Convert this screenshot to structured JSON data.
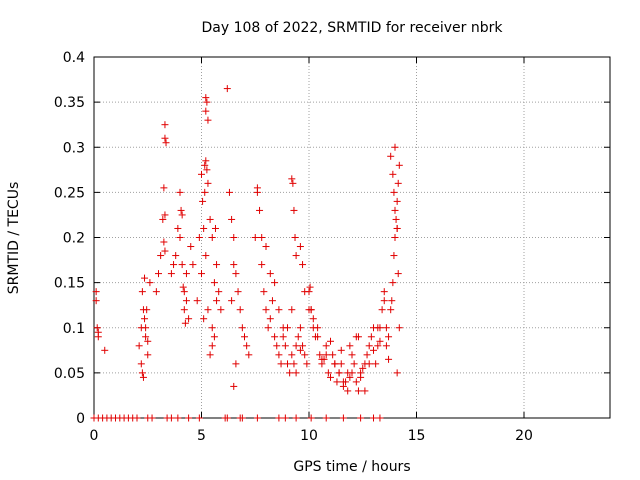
{
  "chart_data": {
    "type": "scatter",
    "title": "Day 108 of 2022, SRMTID for receiver nbrk",
    "xlabel": "GPS time / hours",
    "ylabel": "SRMTID / TECUs",
    "xlim": [
      0,
      24
    ],
    "ylim": [
      0,
      0.4
    ],
    "x_ticks": [
      0,
      5,
      10,
      15,
      20
    ],
    "x_tick_labels": [
      "0",
      "5",
      "10",
      "15",
      "20"
    ],
    "y_ticks": [
      0,
      0.05,
      0.1,
      0.15,
      0.2,
      0.25,
      0.3,
      0.35,
      0.4
    ],
    "y_tick_labels": [
      "0",
      "0.05",
      "0.1",
      "0.15",
      "0.2",
      "0.25",
      "0.3",
      "0.35",
      "0.4"
    ],
    "grid": true,
    "marker": "plus",
    "color": "#e00000",
    "series": [
      {
        "name": "SRMTID",
        "x": [
          0.1,
          0.15,
          0.2,
          0.1,
          0.2,
          0.5,
          2.1,
          2.2,
          2.25,
          2.3,
          2.35,
          2.4,
          2.45,
          2.5,
          2.2,
          2.3,
          2.6,
          2.4,
          2.35,
          2.25,
          2.5,
          2.9,
          3.0,
          3.1,
          3.2,
          3.25,
          3.3,
          3.3,
          3.35,
          3.3,
          3.3,
          3.25,
          3.6,
          3.7,
          3.8,
          3.9,
          4.0,
          4.0,
          4.05,
          4.1,
          4.2,
          4.3,
          4.2,
          4.5,
          4.6,
          4.1,
          4.3,
          4.4,
          4.25,
          4.15,
          4.8,
          4.9,
          5.0,
          5.0,
          5.05,
          5.1,
          5.15,
          5.2,
          5.25,
          5.3,
          5.2,
          5.2,
          5.15,
          5.25,
          5.3,
          5.4,
          5.5,
          5.6,
          5.7,
          5.8,
          5.3,
          5.5,
          5.6,
          5.5,
          5.4,
          5.2,
          5.1,
          5.7,
          5.65,
          5.9,
          6.2,
          6.3,
          6.4,
          6.5,
          6.6,
          6.5,
          6.7,
          6.8,
          6.9,
          7.0,
          7.1,
          7.2,
          6.4,
          6.6,
          6.5,
          7.5,
          7.6,
          7.7,
          7.8,
          7.9,
          8.0,
          8.1,
          8.2,
          8.3,
          8.4,
          8.5,
          8.6,
          8.7,
          8.8,
          8.9,
          9.0,
          9.1,
          9.2,
          9.3,
          9.4,
          9.5,
          9.6,
          9.7,
          9.8,
          9.9,
          10.0,
          10.1,
          10.2,
          10.3,
          10.4,
          7.6,
          7.8,
          8.0,
          8.2,
          8.4,
          8.6,
          8.8,
          9.0,
          9.2,
          9.4,
          9.6,
          9.8,
          10.0,
          10.2,
          10.4,
          10.5,
          10.6,
          10.7,
          10.8,
          10.9,
          11.0,
          11.1,
          11.2,
          11.3,
          11.4,
          11.5,
          11.6,
          11.7,
          11.8,
          11.9,
          12.0,
          12.1,
          12.2,
          12.3,
          12.4,
          12.5,
          12.6,
          12.7,
          12.8,
          12.9,
          13.0,
          10.6,
          10.8,
          11.0,
          11.2,
          11.4,
          11.6,
          11.8,
          12.0,
          12.2,
          12.4,
          12.6,
          12.8,
          13.0,
          13.1,
          13.2,
          13.3,
          13.4,
          13.5,
          13.6,
          13.7,
          13.8,
          13.85,
          13.9,
          13.95,
          14.0,
          14.05,
          14.1,
          14.15,
          14.2,
          14.0,
          13.8,
          13.9,
          14.1,
          13.6,
          13.7,
          13.5,
          13.95,
          14.0,
          14.1,
          14.15,
          9.2,
          9.25,
          9.3,
          9.35,
          9.4,
          9.6,
          9.7,
          10.05,
          10.1,
          11.5,
          11.9,
          12.3,
          13.2,
          13.3,
          14.1,
          14.2
        ],
        "y": [
          0.13,
          0.1,
          0.095,
          0.14,
          0.09,
          0.075,
          0.08,
          0.1,
          0.14,
          0.12,
          0.155,
          0.09,
          0.12,
          0.07,
          0.06,
          0.045,
          0.15,
          0.1,
          0.11,
          0.05,
          0.085,
          0.14,
          0.16,
          0.18,
          0.22,
          0.255,
          0.325,
          0.31,
          0.305,
          0.225,
          0.185,
          0.195,
          0.16,
          0.17,
          0.18,
          0.21,
          0.2,
          0.25,
          0.23,
          0.17,
          0.14,
          0.16,
          0.12,
          0.19,
          0.17,
          0.225,
          0.13,
          0.11,
          0.105,
          0.145,
          0.13,
          0.2,
          0.16,
          0.27,
          0.24,
          0.21,
          0.25,
          0.355,
          0.35,
          0.33,
          0.34,
          0.285,
          0.28,
          0.275,
          0.26,
          0.22,
          0.2,
          0.15,
          0.17,
          0.14,
          0.12,
          0.1,
          0.09,
          0.08,
          0.07,
          0.18,
          0.11,
          0.13,
          0.21,
          0.12,
          0.365,
          0.25,
          0.22,
          0.17,
          0.16,
          0.2,
          0.14,
          0.12,
          0.1,
          0.09,
          0.08,
          0.07,
          0.13,
          0.06,
          0.035,
          0.2,
          0.25,
          0.23,
          0.17,
          0.14,
          0.12,
          0.1,
          0.11,
          0.13,
          0.09,
          0.08,
          0.07,
          0.06,
          0.1,
          0.08,
          0.06,
          0.05,
          0.07,
          0.06,
          0.05,
          0.09,
          0.1,
          0.08,
          0.07,
          0.06,
          0.14,
          0.12,
          0.11,
          0.09,
          0.1,
          0.255,
          0.2,
          0.19,
          0.16,
          0.15,
          0.12,
          0.09,
          0.1,
          0.12,
          0.08,
          0.075,
          0.14,
          0.12,
          0.1,
          0.09,
          0.07,
          0.06,
          0.065,
          0.08,
          0.05,
          0.045,
          0.07,
          0.06,
          0.04,
          0.05,
          0.06,
          0.035,
          0.04,
          0.03,
          0.045,
          0.05,
          0.06,
          0.04,
          0.03,
          0.045,
          0.055,
          0.06,
          0.07,
          0.08,
          0.09,
          0.1,
          0.065,
          0.07,
          0.085,
          0.06,
          0.05,
          0.04,
          0.05,
          0.07,
          0.09,
          0.05,
          0.03,
          0.06,
          0.075,
          0.06,
          0.08,
          0.1,
          0.12,
          0.14,
          0.1,
          0.09,
          0.12,
          0.13,
          0.15,
          0.18,
          0.2,
          0.22,
          0.24,
          0.26,
          0.28,
          0.3,
          0.29,
          0.27,
          0.21,
          0.08,
          0.065,
          0.13,
          0.25,
          0.23,
          0.21,
          0.16,
          0.265,
          0.26,
          0.23,
          0.2,
          0.18,
          0.19,
          0.17,
          0.145,
          0.12,
          0.075,
          0.08,
          0.09,
          0.1,
          0.085,
          0.05,
          0.1
        ],
        "near_zero_x": [
          0,
          0.2,
          0.4,
          0.6,
          0.8,
          1.0,
          1.2,
          1.4,
          1.6,
          1.8,
          2.0,
          2.5,
          2.7,
          3.4,
          3.6,
          3.9,
          4.4,
          4.9,
          6.1,
          6.2,
          6.8,
          6.9,
          7.6,
          8.6,
          8.9,
          9.4,
          10.1,
          10.8,
          11.6,
          12.4,
          13.0,
          13.3
        ],
        "near_zero_y": 0
      }
    ]
  }
}
